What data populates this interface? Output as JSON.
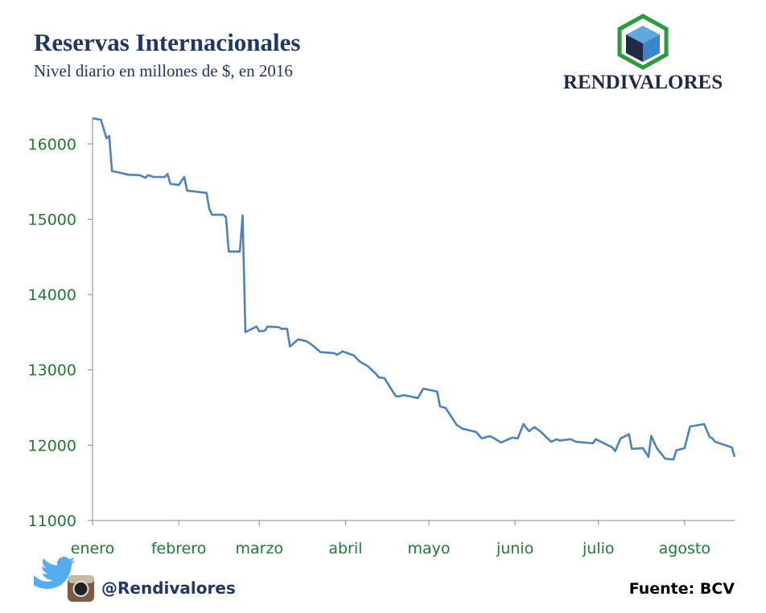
{
  "chart_data": {
    "type": "line",
    "title": "Reservas Internacionales",
    "subtitle": "Nivel diario en millones de $, en 2016",
    "x": [
      1,
      4,
      6,
      7,
      8,
      14,
      18,
      20,
      21,
      23,
      27,
      28,
      29,
      32,
      34,
      35,
      42,
      43,
      44,
      48,
      49,
      50,
      54,
      55,
      56,
      60,
      61,
      63,
      64,
      68,
      69,
      71,
      72,
      73,
      75,
      78,
      80,
      83,
      88,
      89,
      91,
      95,
      97,
      100,
      103,
      104,
      106,
      110,
      111,
      113,
      118,
      120,
      124,
      125,
      126,
      128,
      132,
      134,
      139,
      141,
      144,
      146,
      148,
      152,
      154,
      156,
      158,
      160,
      162,
      166,
      168,
      169,
      173,
      175,
      181,
      182,
      188,
      189,
      191,
      194,
      195,
      199,
      201,
      202,
      204,
      207,
      210,
      211,
      214,
      216,
      218,
      221,
      223,
      224,
      225,
      231,
      232
    ],
    "series": [
      {
        "name": "Reservas",
        "color": "#4f81bd",
        "values": [
          16340,
          16320,
          16075,
          16105,
          15640,
          15590,
          15585,
          15550,
          15585,
          15560,
          15560,
          15600,
          15470,
          15455,
          15560,
          15380,
          15350,
          15135,
          15060,
          15060,
          15030,
          14570,
          14570,
          15050,
          13500,
          13575,
          13510,
          13520,
          13575,
          13565,
          13545,
          13545,
          13310,
          13340,
          13405,
          13380,
          13330,
          13235,
          13220,
          13200,
          13245,
          13190,
          13115,
          13050,
          12945,
          12900,
          12890,
          12655,
          12645,
          12665,
          12625,
          12750,
          12720,
          12710,
          12515,
          12495,
          12270,
          12220,
          12175,
          12090,
          12120,
          12080,
          12035,
          12100,
          12090,
          12280,
          12185,
          12240,
          12185,
          12045,
          12080,
          12060,
          12080,
          12045,
          12025,
          12080,
          11970,
          11920,
          12090,
          12145,
          11950,
          11960,
          11845,
          12120,
          11960,
          11820,
          11810,
          11930,
          11960,
          12250,
          12260,
          12280,
          12110,
          12090,
          12045,
          11970,
          11845
        ]
      }
    ],
    "xlim": [
      1,
      232
    ],
    "xticks": [
      {
        "value": 1,
        "label": "enero"
      },
      {
        "value": 32,
        "label": "febrero"
      },
      {
        "value": 61,
        "label": "marzo"
      },
      {
        "value": 92,
        "label": "abril"
      },
      {
        "value": 122,
        "label": "mayo"
      },
      {
        "value": 153,
        "label": "junio"
      },
      {
        "value": 183,
        "label": "julio"
      },
      {
        "value": 214,
        "label": "agosto"
      }
    ],
    "ylim": [
      11000,
      16340
    ],
    "yticks": [
      11000,
      12000,
      13000,
      14000,
      15000,
      16000
    ]
  },
  "logo_text": "RENDIVALORES",
  "social_handle": "@Rendivalores",
  "source": "Fuente: BCV"
}
